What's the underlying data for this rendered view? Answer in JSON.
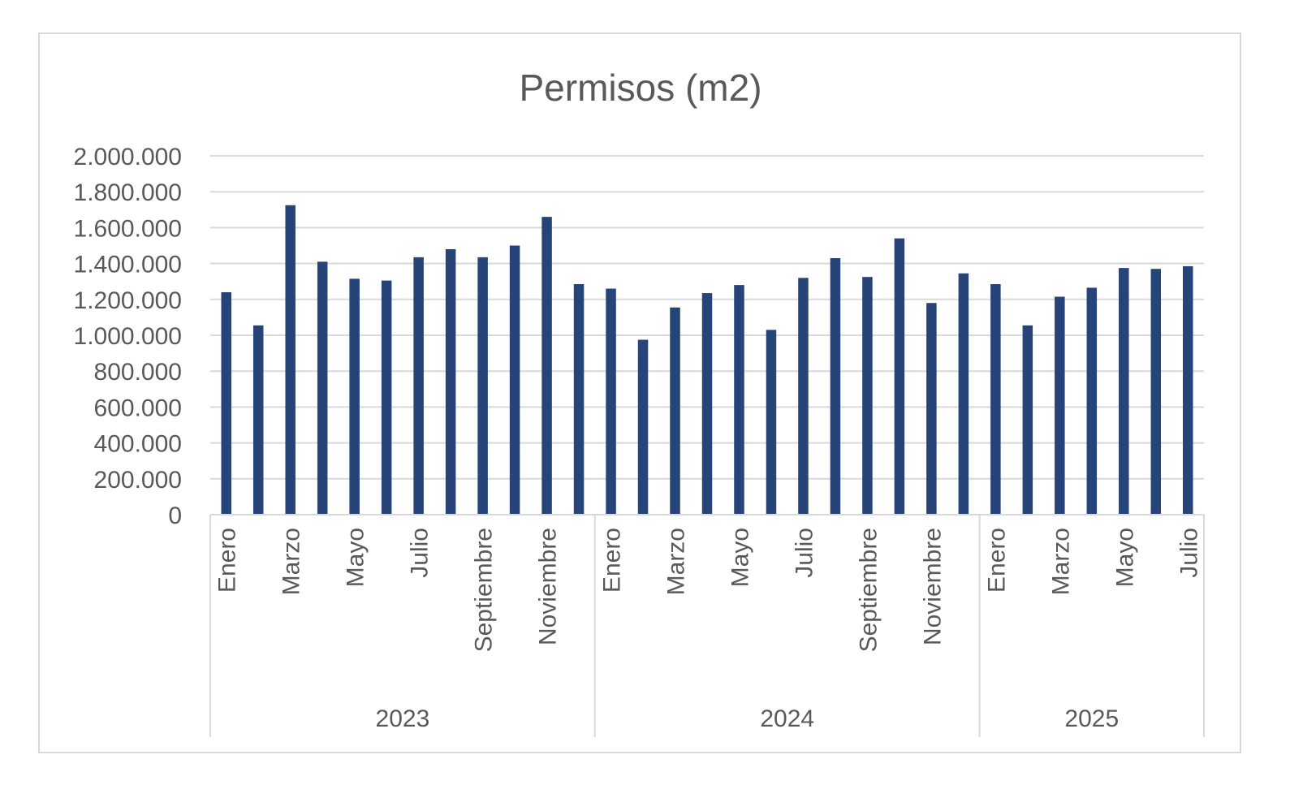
{
  "chart_data": {
    "type": "bar",
    "title": "Permisos (m2)",
    "xlabel": "",
    "ylabel": "",
    "ylim": [
      0,
      2000000
    ],
    "yticks": [
      "0",
      "200.000",
      "400.000",
      "600.000",
      "800.000",
      "1.000.000",
      "1.200.000",
      "1.400.000",
      "1.600.000",
      "1.800.000",
      "2.000.000"
    ],
    "grid": true,
    "bar_color": "#264478",
    "groups": [
      {
        "year": "2023",
        "months": [
          "Enero",
          "",
          "Marzo",
          "",
          "Mayo",
          "",
          "Julio",
          "",
          "Septiembre",
          "",
          "Noviembre",
          ""
        ],
        "values": [
          1240000,
          1055000,
          1725000,
          1410000,
          1315000,
          1305000,
          1435000,
          1480000,
          1435000,
          1500000,
          1660000,
          1285000
        ]
      },
      {
        "year": "2024",
        "months": [
          "Enero",
          "",
          "Marzo",
          "",
          "Mayo",
          "",
          "Julio",
          "",
          "Septiembre",
          "",
          "Noviembre",
          ""
        ],
        "values": [
          1260000,
          975000,
          1155000,
          1235000,
          1280000,
          1030000,
          1320000,
          1430000,
          1325000,
          1540000,
          1180000,
          1345000
        ]
      },
      {
        "year": "2025",
        "months": [
          "Enero",
          "",
          "Marzo",
          "",
          "Mayo",
          "",
          "Julio"
        ],
        "values": [
          1285000,
          1055000,
          1215000,
          1265000,
          1375000,
          1370000,
          1385000
        ]
      }
    ]
  }
}
